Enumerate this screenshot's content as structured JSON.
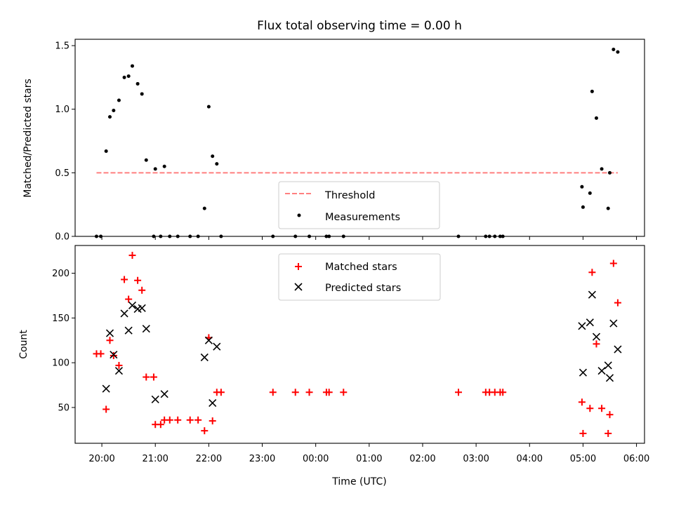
{
  "chart_data": [
    {
      "type": "scatter",
      "title": "Flux total observing time = 0.00 h",
      "ylabel": "Matched/Predicted stars",
      "xlabel": "",
      "xlim": [
        19.5,
        30.15
      ],
      "ylim": [
        0,
        1.55
      ],
      "yticks": [
        0,
        0.5,
        1,
        1.5
      ],
      "ytick_labels": [
        "0.0",
        "0.5",
        "1.0",
        "1.5"
      ],
      "legend": {
        "position": "lower center",
        "entries": [
          "Threshold",
          "Measurements"
        ]
      },
      "threshold": {
        "name": "Threshold",
        "value": 0.5,
        "x": [
          19.9,
          29.65
        ],
        "color": "#ff7f7f",
        "style": "dashed"
      },
      "series": [
        {
          "name": "Measurements",
          "color": "#000000",
          "marker": "dot",
          "points": [
            [
              19.9,
              0.0
            ],
            [
              19.98,
              0.0
            ],
            [
              20.08,
              0.67
            ],
            [
              20.15,
              0.94
            ],
            [
              20.22,
              0.99
            ],
            [
              20.32,
              1.07
            ],
            [
              20.42,
              1.25
            ],
            [
              20.5,
              1.26
            ],
            [
              20.57,
              1.34
            ],
            [
              20.67,
              1.2
            ],
            [
              20.75,
              1.12
            ],
            [
              20.83,
              0.6
            ],
            [
              20.97,
              0.0
            ],
            [
              21.0,
              0.53
            ],
            [
              21.1,
              0.0
            ],
            [
              21.17,
              0.55
            ],
            [
              21.27,
              0.0
            ],
            [
              21.42,
              0.0
            ],
            [
              21.65,
              0.0
            ],
            [
              21.8,
              0.0
            ],
            [
              21.92,
              0.22
            ],
            [
              22.0,
              1.02
            ],
            [
              22.07,
              0.63
            ],
            [
              22.15,
              0.57
            ],
            [
              22.23,
              0.0
            ],
            [
              23.2,
              0.0
            ],
            [
              23.62,
              0.0
            ],
            [
              23.88,
              0.0
            ],
            [
              24.2,
              0.0
            ],
            [
              24.25,
              0.0
            ],
            [
              24.52,
              0.0
            ],
            [
              26.67,
              0.0
            ],
            [
              27.18,
              0.0
            ],
            [
              27.25,
              0.0
            ],
            [
              27.35,
              0.0
            ],
            [
              27.45,
              0.0
            ],
            [
              27.5,
              0.0
            ],
            [
              28.98,
              0.39
            ],
            [
              29.0,
              0.23
            ],
            [
              29.13,
              0.34
            ],
            [
              29.17,
              1.14
            ],
            [
              29.25,
              0.93
            ],
            [
              29.35,
              0.53
            ],
            [
              29.47,
              0.22
            ],
            [
              29.5,
              0.5
            ],
            [
              29.57,
              1.47
            ],
            [
              29.65,
              1.45
            ]
          ]
        }
      ]
    },
    {
      "type": "scatter",
      "title": "",
      "ylabel": "Count",
      "xlabel": "Time (UTC)",
      "xlim": [
        19.5,
        30.15
      ],
      "ylim": [
        10,
        231
      ],
      "yticks": [
        50,
        100,
        150,
        200
      ],
      "ytick_labels": [
        "50",
        "100",
        "150",
        "200"
      ],
      "xticks": [
        20,
        21,
        22,
        23,
        24,
        25,
        26,
        27,
        28,
        29,
        30
      ],
      "xtick_labels": [
        "20:00",
        "21:00",
        "22:00",
        "23:00",
        "00:00",
        "01:00",
        "02:00",
        "03:00",
        "04:00",
        "05:00",
        "06:00"
      ],
      "legend": {
        "position": "upper center",
        "entries": [
          "Matched stars",
          "Predicted stars"
        ]
      },
      "series": [
        {
          "name": "Matched stars",
          "color": "#ff0000",
          "marker": "plus",
          "points": [
            [
              19.9,
              110
            ],
            [
              19.98,
              110
            ],
            [
              20.08,
              48
            ],
            [
              20.15,
              125
            ],
            [
              20.22,
              108
            ],
            [
              20.32,
              97
            ],
            [
              20.42,
              193
            ],
            [
              20.5,
              171
            ],
            [
              20.57,
              220
            ],
            [
              20.67,
              192
            ],
            [
              20.75,
              181
            ],
            [
              20.83,
              84
            ],
            [
              20.97,
              84
            ],
            [
              21.0,
              31
            ],
            [
              21.1,
              31
            ],
            [
              21.17,
              36
            ],
            [
              21.27,
              36
            ],
            [
              21.42,
              36
            ],
            [
              21.65,
              36
            ],
            [
              21.8,
              36
            ],
            [
              21.92,
              24
            ],
            [
              22.0,
              128
            ],
            [
              22.07,
              35
            ],
            [
              22.15,
              67
            ],
            [
              22.23,
              67
            ],
            [
              23.2,
              67
            ],
            [
              23.62,
              67
            ],
            [
              23.88,
              67
            ],
            [
              24.2,
              67
            ],
            [
              24.25,
              67
            ],
            [
              24.52,
              67
            ],
            [
              26.67,
              67
            ],
            [
              27.18,
              67
            ],
            [
              27.25,
              67
            ],
            [
              27.35,
              67
            ],
            [
              27.45,
              67
            ],
            [
              27.5,
              67
            ],
            [
              28.98,
              56
            ],
            [
              29.0,
              21
            ],
            [
              29.13,
              49
            ],
            [
              29.17,
              201
            ],
            [
              29.25,
              121
            ],
            [
              29.35,
              49
            ],
            [
              29.47,
              21
            ],
            [
              29.5,
              42
            ],
            [
              29.57,
              211
            ],
            [
              29.65,
              167
            ]
          ]
        },
        {
          "name": "Predicted stars",
          "color": "#000000",
          "marker": "x",
          "points": [
            [
              20.08,
              71
            ],
            [
              20.15,
              133
            ],
            [
              20.22,
              109
            ],
            [
              20.32,
              91
            ],
            [
              20.42,
              155
            ],
            [
              20.5,
              136
            ],
            [
              20.57,
              164
            ],
            [
              20.67,
              160
            ],
            [
              20.75,
              161
            ],
            [
              20.83,
              138
            ],
            [
              21.0,
              59
            ],
            [
              21.17,
              65
            ],
            [
              21.92,
              106
            ],
            [
              22.0,
              125
            ],
            [
              22.07,
              55
            ],
            [
              22.15,
              118
            ],
            [
              28.98,
              141
            ],
            [
              29.0,
              89
            ],
            [
              29.13,
              145
            ],
            [
              29.17,
              176
            ],
            [
              29.25,
              129
            ],
            [
              29.35,
              91
            ],
            [
              29.47,
              97
            ],
            [
              29.5,
              83
            ],
            [
              29.57,
              144
            ],
            [
              29.65,
              115
            ]
          ]
        }
      ]
    }
  ]
}
